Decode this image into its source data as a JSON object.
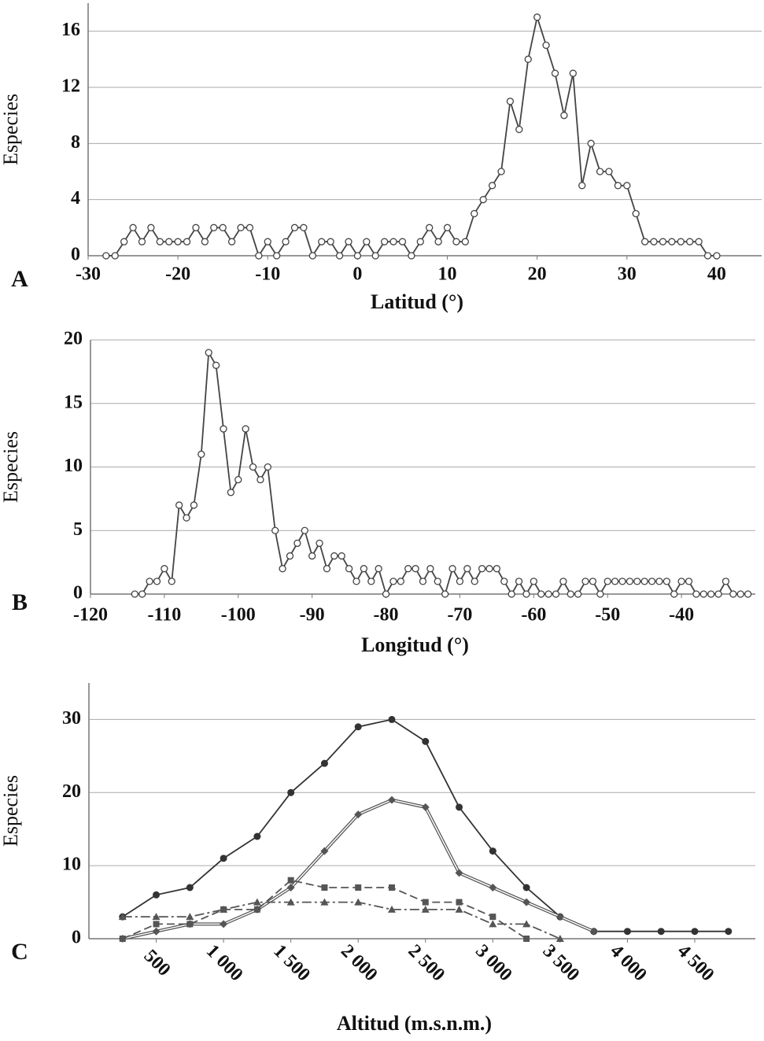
{
  "chart_data": [
    {
      "type": "line",
      "label": "A",
      "xlabel": "Latitud (°)",
      "ylabel": "Especies",
      "color": "#444444",
      "marker": "circle",
      "x": [
        -28,
        -27,
        -26,
        -25,
        -24,
        -23,
        -22,
        -21,
        -20,
        -19,
        -18,
        -17,
        -16,
        -15,
        -14,
        -13,
        -12,
        -11,
        -10,
        -9,
        -8,
        -7,
        -6,
        -5,
        -4,
        -3,
        -2,
        -1,
        0,
        1,
        2,
        3,
        4,
        5,
        6,
        7,
        8,
        9,
        10,
        11,
        12,
        13,
        14,
        15,
        16,
        17,
        18,
        19,
        20,
        21,
        22,
        23,
        24,
        25,
        26,
        27,
        28,
        29,
        30,
        31,
        32,
        33,
        34,
        35,
        36,
        37,
        38,
        39,
        40
      ],
      "values": [
        0,
        0,
        1,
        2,
        1,
        2,
        1,
        1,
        1,
        1,
        2,
        1,
        2,
        2,
        1,
        2,
        2,
        0,
        1,
        0,
        1,
        2,
        2,
        0,
        1,
        1,
        0,
        1,
        0,
        1,
        0,
        1,
        1,
        1,
        0,
        1,
        2,
        1,
        2,
        1,
        1,
        3,
        4,
        5,
        6,
        11,
        9,
        14,
        17,
        15,
        13,
        10,
        13,
        5,
        8,
        6,
        6,
        5,
        5,
        3,
        1,
        1,
        1,
        1,
        1,
        1,
        1,
        0,
        0
      ],
      "xlim": [
        -30,
        45
      ],
      "xticks": [
        -30,
        -20,
        -10,
        0,
        10,
        20,
        30,
        40
      ],
      "ylim": [
        0,
        18
      ],
      "yticks": [
        0,
        4,
        8,
        12,
        16
      ],
      "grid": true
    },
    {
      "type": "line",
      "label": "B",
      "xlabel": "Longitud (°)",
      "ylabel": "Especies",
      "color": "#444444",
      "marker": "circle",
      "x": [
        -114,
        -113,
        -112,
        -111,
        -110,
        -109,
        -108,
        -107,
        -106,
        -105,
        -104,
        -103,
        -102,
        -101,
        -100,
        -99,
        -98,
        -97,
        -96,
        -95,
        -94,
        -93,
        -92,
        -91,
        -90,
        -89,
        -88,
        -87,
        -86,
        -85,
        -84,
        -83,
        -82,
        -81,
        -80,
        -79,
        -78,
        -77,
        -76,
        -75,
        -74,
        -73,
        -72,
        -71,
        -70,
        -69,
        -68,
        -67,
        -66,
        -65,
        -64,
        -63,
        -62,
        -61,
        -60,
        -59,
        -58,
        -57,
        -56,
        -55,
        -54,
        -53,
        -52,
        -51,
        -50,
        -49,
        -48,
        -47,
        -46,
        -45,
        -44,
        -43,
        -42,
        -41,
        -40,
        -39,
        -38,
        -37,
        -36,
        -35,
        -34,
        -33,
        -32,
        -31
      ],
      "values": [
        0,
        0,
        1,
        1,
        2,
        1,
        7,
        6,
        7,
        11,
        19,
        18,
        13,
        8,
        9,
        13,
        10,
        9,
        10,
        5,
        2,
        3,
        4,
        5,
        3,
        4,
        2,
        3,
        3,
        2,
        1,
        2,
        1,
        2,
        0,
        1,
        1,
        2,
        2,
        1,
        2,
        1,
        0,
        2,
        1,
        2,
        1,
        2,
        2,
        2,
        1,
        0,
        1,
        0,
        1,
        0,
        0,
        0,
        1,
        0,
        0,
        1,
        1,
        0,
        1,
        1,
        1,
        1,
        1,
        1,
        1,
        1,
        1,
        0,
        1,
        1,
        0,
        0,
        0,
        0,
        1,
        0,
        0,
        0
      ],
      "xlim": [
        -120,
        -30
      ],
      "xticks": [
        -120,
        -110,
        -100,
        -90,
        -80,
        -70,
        -60,
        -50,
        -40
      ],
      "ylim": [
        0,
        20
      ],
      "yticks": [
        0,
        5,
        10,
        15,
        20
      ],
      "grid": true
    },
    {
      "type": "line",
      "label": "C",
      "xlabel": "Altitud (m.s.n.m.)",
      "ylabel": "Especies",
      "x": [
        250,
        500,
        750,
        1000,
        1250,
        1500,
        1750,
        2000,
        2250,
        2500,
        2750,
        3000,
        3250,
        3500,
        3750,
        4000,
        4250,
        4500,
        4750
      ],
      "series": [
        {
          "color": "#333333",
          "marker": "circle",
          "dash": "solid",
          "values": [
            3,
            6,
            7,
            11,
            14,
            20,
            24,
            29,
            30,
            27,
            18,
            12,
            7,
            3,
            1,
            1,
            1,
            1,
            1
          ]
        },
        {
          "color": "#555555",
          "marker": "diamond",
          "dash": "double",
          "values": [
            0,
            1,
            2,
            2,
            4,
            7,
            12,
            17,
            19,
            18,
            9,
            7,
            5,
            3,
            1,
            null,
            null,
            null,
            null
          ]
        },
        {
          "color": "#555555",
          "marker": "square",
          "dash": "dashed",
          "values": [
            0,
            2,
            2,
            4,
            4,
            8,
            7,
            7,
            7,
            5,
            5,
            3,
            0,
            null,
            null,
            null,
            null,
            null,
            null
          ]
        },
        {
          "color": "#555555",
          "marker": "triangle",
          "dash": "dashdot",
          "values": [
            3,
            3,
            3,
            4,
            5,
            5,
            5,
            5,
            4,
            4,
            4,
            2,
            2,
            0,
            null,
            null,
            null,
            null,
            null
          ]
        }
      ],
      "xlim": [
        0,
        4950
      ],
      "xticks": [
        500,
        {
          "value": 1000,
          "label": "1 000"
        },
        {
          "value": 1500,
          "label": "1 500"
        },
        {
          "value": 2000,
          "label": "2 000"
        },
        {
          "value": 2500,
          "label": "2 500"
        },
        {
          "value": 3000,
          "label": "3 000"
        },
        {
          "value": 3500,
          "label": "3 500"
        },
        {
          "value": 4000,
          "label": "4 000"
        },
        {
          "value": 4500,
          "label": "4 500"
        }
      ],
      "ylim": [
        0,
        35
      ],
      "yticks": [
        0,
        10,
        20,
        30
      ],
      "grid": true
    }
  ]
}
